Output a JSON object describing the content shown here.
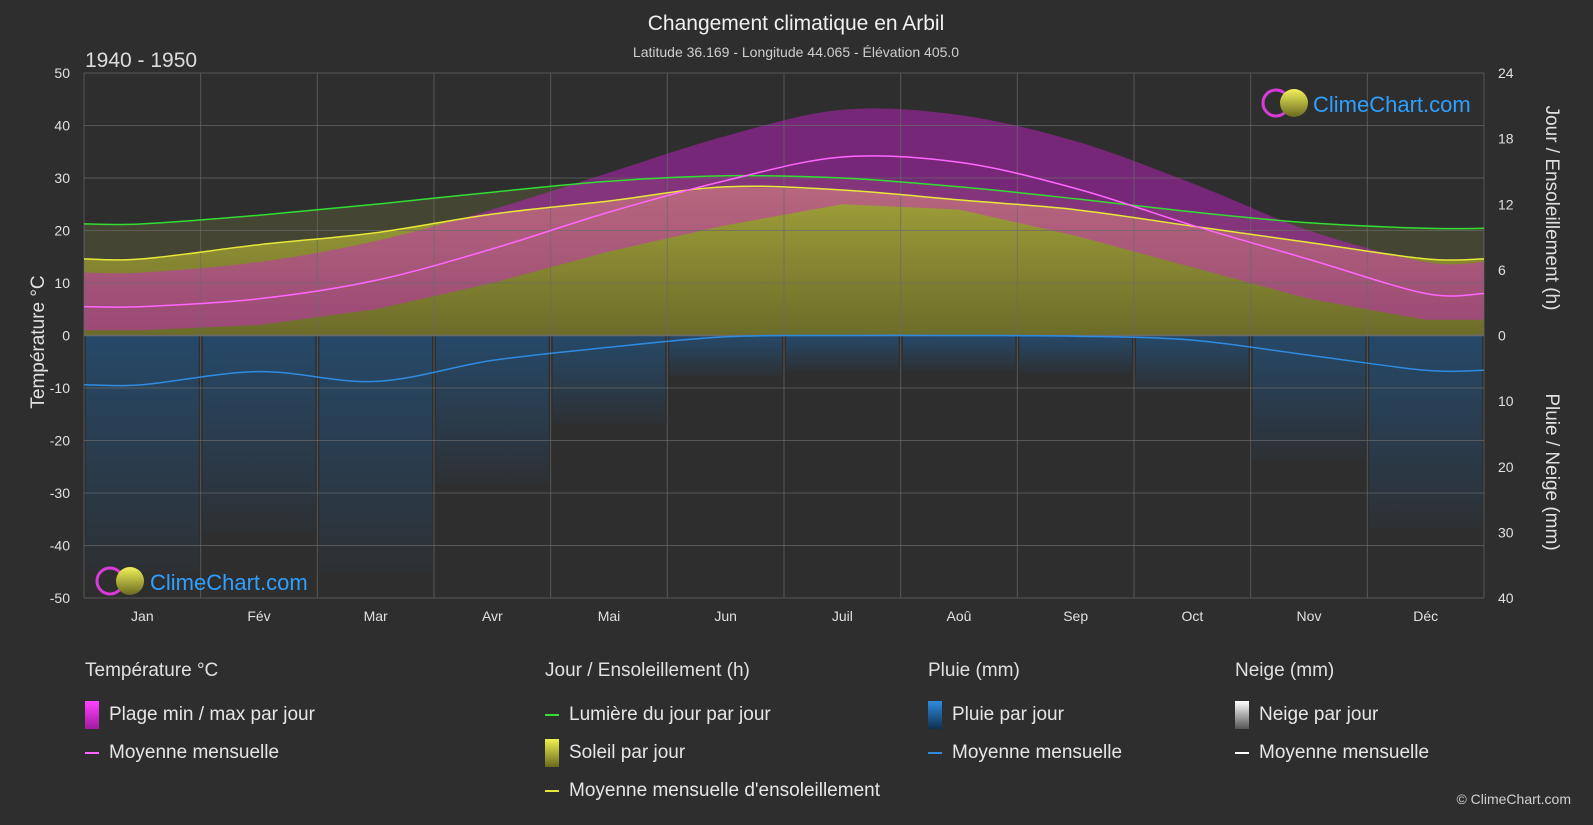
{
  "header": {
    "title": "Changement climatique en Arbil",
    "subtitle": "Latitude 36.169 - Longitude 44.065 - Élévation 405.0",
    "period": "1940 - 1950"
  },
  "brand": {
    "name": "ClimeChart.com",
    "copyright": "© ClimeChart.com"
  },
  "axes": {
    "left_label": "Température °C",
    "right_top_label": "Jour / Ensoleillement (h)",
    "right_bottom_label": "Pluie / Neige (mm)"
  },
  "chart_data": {
    "type": "line",
    "title": "Changement climatique en Arbil",
    "categories": [
      "Jan",
      "Fév",
      "Mar",
      "Avr",
      "Mai",
      "Jun",
      "Juil",
      "Aoû",
      "Sep",
      "Oct",
      "Nov",
      "Déc"
    ],
    "temp_axis": {
      "ylim": [
        -50,
        50
      ],
      "ticks": [
        50,
        40,
        30,
        20,
        10,
        0,
        -10,
        -20,
        -30,
        -40,
        -50
      ]
    },
    "sun_axis": {
      "ylim": [
        0,
        24
      ],
      "ticks": [
        24,
        18,
        12,
        6,
        0
      ]
    },
    "precip_axis": {
      "ylim": [
        0,
        40
      ],
      "ticks": [
        0,
        10,
        20,
        30,
        40
      ]
    },
    "series": [
      {
        "name": "Moyenne mensuelle température",
        "unit": "°C",
        "color": "#ff66ff",
        "values": [
          5.5,
          7,
          10.5,
          16.5,
          23.5,
          29.5,
          34,
          33,
          28,
          21,
          14.5,
          8
        ]
      },
      {
        "name": "Température max moyenne",
        "unit": "°C",
        "color": "#d42ad4",
        "values": [
          12,
          14,
          18,
          24,
          31,
          38,
          43,
          42,
          37,
          29,
          20,
          14
        ]
      },
      {
        "name": "Température min moyenne",
        "unit": "°C",
        "color": "#d42ad4",
        "values": [
          1,
          2,
          5,
          10,
          16,
          21,
          25,
          24,
          19,
          13,
          7,
          3
        ]
      },
      {
        "name": "Lumière du jour par jour",
        "unit": "h",
        "color": "#33dd33",
        "values": [
          10.2,
          11.0,
          12.0,
          13.1,
          14.1,
          14.6,
          14.4,
          13.6,
          12.5,
          11.3,
          10.3,
          9.8
        ]
      },
      {
        "name": "Moyenne mensuelle d'ensoleillement",
        "unit": "h",
        "color": "#e8e83a",
        "values": [
          7.0,
          8.3,
          9.4,
          11.1,
          12.3,
          13.6,
          13.3,
          12.4,
          11.5,
          10.0,
          8.5,
          7.0
        ]
      },
      {
        "name": "Pluie moyenne mensuelle",
        "unit": "mm",
        "color": "#2f8be0",
        "values": [
          7.5,
          5.5,
          7.0,
          3.8,
          1.8,
          0.2,
          0.0,
          0.0,
          0.1,
          0.7,
          3.0,
          5.3
        ]
      }
    ]
  },
  "legend": {
    "groups": [
      {
        "title": "Température °C",
        "items": [
          {
            "label": "Plage min / max par jour",
            "kind": "box",
            "color": "#e020e0"
          },
          {
            "label": "Moyenne mensuelle",
            "kind": "line",
            "color": "#ff66ff"
          }
        ]
      },
      {
        "title": "Jour / Ensoleillement (h)",
        "items": [
          {
            "label": "Lumière du jour par jour",
            "kind": "line",
            "color": "#33dd33"
          },
          {
            "label": "Soleil par jour",
            "kind": "box",
            "color": "#c8c832"
          },
          {
            "label": "Moyenne mensuelle d'ensoleillement",
            "kind": "line",
            "color": "#e8e83a"
          }
        ]
      },
      {
        "title": "Pluie (mm)",
        "items": [
          {
            "label": "Pluie par jour",
            "kind": "box",
            "color": "#1f77d4"
          },
          {
            "label": "Moyenne mensuelle",
            "kind": "line",
            "color": "#2f8be0"
          }
        ]
      },
      {
        "title": "Neige (mm)",
        "items": [
          {
            "label": "Neige par jour",
            "kind": "box",
            "color": "#dddddd"
          },
          {
            "label": "Moyenne mensuelle",
            "kind": "line",
            "color": "#ffffff"
          }
        ]
      }
    ]
  }
}
